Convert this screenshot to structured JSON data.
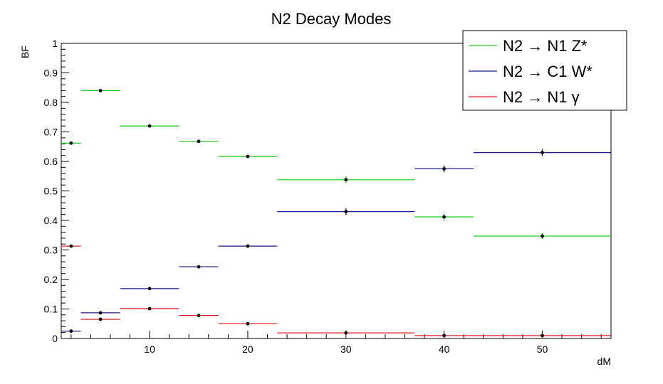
{
  "chart_data": {
    "type": "scatter",
    "title": "N2 Decay Modes",
    "xlabel": "dM",
    "ylabel": "BF",
    "xlim": [
      1,
      57
    ],
    "ylim": [
      0,
      1
    ],
    "x_ticks": [
      10,
      20,
      30,
      40,
      50
    ],
    "y_ticks": [
      0,
      0.1,
      0.2,
      0.3,
      0.4,
      0.5,
      0.6,
      0.7,
      0.8,
      0.9,
      1
    ],
    "y_tick_labels": [
      "0",
      "0.1",
      "0.2",
      "0.3",
      "0.4",
      "0.5",
      "0.6",
      "0.7",
      "0.8",
      "0.9",
      "1"
    ],
    "grid": false,
    "legend_position": "top-right",
    "series": [
      {
        "name": "N2 → N1 Z*",
        "color": "#22cc22",
        "points": [
          {
            "x": 2,
            "xlow": 1,
            "xhigh": 3,
            "y": 0.662,
            "err": 0.003
          },
          {
            "x": 5,
            "xlow": 3,
            "xhigh": 7,
            "y": 0.84,
            "err": 0.003
          },
          {
            "x": 10,
            "xlow": 7,
            "xhigh": 13,
            "y": 0.72,
            "err": 0.004
          },
          {
            "x": 15,
            "xlow": 13,
            "xhigh": 17,
            "y": 0.668,
            "err": 0.005
          },
          {
            "x": 20,
            "xlow": 17,
            "xhigh": 23,
            "y": 0.617,
            "err": 0.006
          },
          {
            "x": 30,
            "xlow": 23,
            "xhigh": 37,
            "y": 0.538,
            "err": 0.012
          },
          {
            "x": 40,
            "xlow": 37,
            "xhigh": 43,
            "y": 0.412,
            "err": 0.012
          },
          {
            "x": 50,
            "xlow": 43,
            "xhigh": 57,
            "y": 0.347,
            "err": 0.01
          }
        ]
      },
      {
        "name": "N2 → C1 W*",
        "color": "#1a1a8c",
        "points": [
          {
            "x": 2,
            "xlow": 1,
            "xhigh": 3,
            "y": 0.025,
            "err": 0.003
          },
          {
            "x": 5,
            "xlow": 3,
            "xhigh": 7,
            "y": 0.087,
            "err": 0.003
          },
          {
            "x": 10,
            "xlow": 7,
            "xhigh": 13,
            "y": 0.169,
            "err": 0.004
          },
          {
            "x": 15,
            "xlow": 13,
            "xhigh": 17,
            "y": 0.243,
            "err": 0.005
          },
          {
            "x": 20,
            "xlow": 17,
            "xhigh": 23,
            "y": 0.313,
            "err": 0.006
          },
          {
            "x": 30,
            "xlow": 23,
            "xhigh": 37,
            "y": 0.43,
            "err": 0.012
          },
          {
            "x": 40,
            "xlow": 37,
            "xhigh": 43,
            "y": 0.575,
            "err": 0.012
          },
          {
            "x": 50,
            "xlow": 43,
            "xhigh": 57,
            "y": 0.63,
            "err": 0.012
          }
        ]
      },
      {
        "name": "N2 → N1 γ",
        "color": "#dd2222",
        "points": [
          {
            "x": 2,
            "xlow": 1,
            "xhigh": 3,
            "y": 0.313,
            "err": 0.003
          },
          {
            "x": 5,
            "xlow": 3,
            "xhigh": 7,
            "y": 0.065,
            "err": 0.003
          },
          {
            "x": 10,
            "xlow": 7,
            "xhigh": 13,
            "y": 0.101,
            "err": 0.003
          },
          {
            "x": 15,
            "xlow": 13,
            "xhigh": 17,
            "y": 0.078,
            "err": 0.003
          },
          {
            "x": 20,
            "xlow": 17,
            "xhigh": 23,
            "y": 0.05,
            "err": 0.003
          },
          {
            "x": 30,
            "xlow": 23,
            "xhigh": 37,
            "y": 0.019,
            "err": 0.008
          },
          {
            "x": 40,
            "xlow": 37,
            "xhigh": 43,
            "y": 0.01,
            "err": 0.01
          },
          {
            "x": 50,
            "xlow": 43,
            "xhigh": 57,
            "y": 0.01,
            "err": 0.01
          }
        ]
      }
    ]
  }
}
